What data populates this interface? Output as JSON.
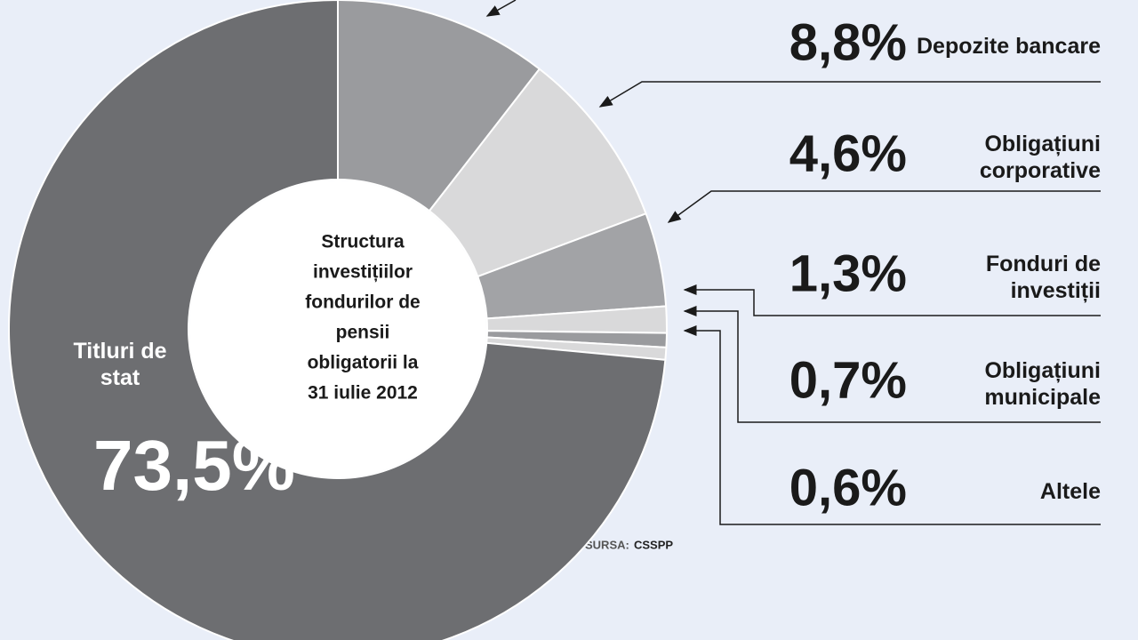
{
  "chart_data": {
    "type": "donut",
    "title_lines": [
      "Structura",
      "investițiilor",
      "fondurilor de",
      "pensii",
      "obligatorii la",
      "31 iulie 2012"
    ],
    "categories": [
      null,
      "Depozite bancare",
      "Obligațiuni corporative",
      "Fonduri de investiții",
      "Obligațiuni municipale",
      "Altele",
      "Titluri de stat"
    ],
    "values": [
      10.5,
      8.8,
      4.6,
      1.3,
      0.7,
      0.6,
      73.5
    ],
    "value_labels": [
      null,
      "8,8%",
      "4,6%",
      "1,3%",
      "0,7%",
      "0,6%",
      "73,5%"
    ],
    "colors": [
      "#9a9b9e",
      "#d9d9da",
      "#a2a3a6",
      "#d9d9da",
      "#9a9b9e",
      "#d9d9da",
      "#6d6e71"
    ],
    "source": {
      "label": "SURSA:",
      "name": "CSSPP"
    }
  }
}
